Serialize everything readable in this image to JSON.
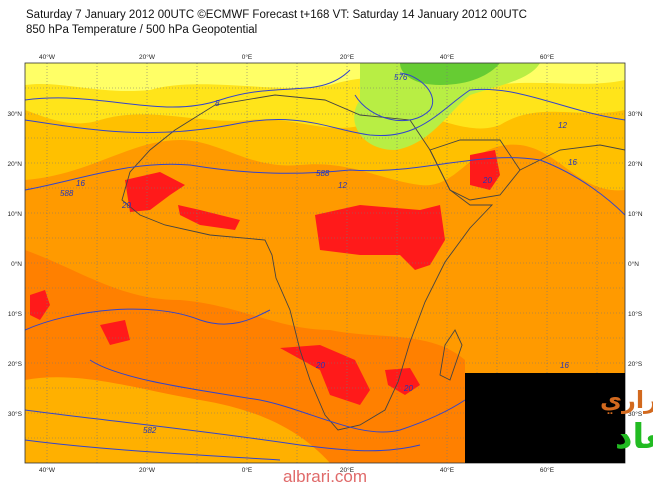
{
  "header": {
    "title": "Saturday 7 January 2012 00UTC ©ECMWF Forecast t+168 VT: Saturday 14 January 2012 00UTC",
    "subtitle": "850 hPa Temperature / 500 hPa Geopotential"
  },
  "map": {
    "longitude_labels": [
      "40°W",
      "20°W",
      "0°E",
      "20°E",
      "40°E",
      "60°E"
    ],
    "latitude_labels": [
      "30°N",
      "20°N",
      "10°N",
      "0°N",
      "10°S",
      "20°S",
      "30°S"
    ],
    "contour_labels": [
      "588",
      "16",
      "8",
      "12",
      "588",
      "576",
      "12",
      "16",
      "20",
      "20",
      "20",
      "20",
      "582",
      "16"
    ]
  },
  "logo": {
    "line1": "البراري",
    "line2": "أبو ميعاد"
  },
  "footer": {
    "website": "albrari.com"
  }
}
